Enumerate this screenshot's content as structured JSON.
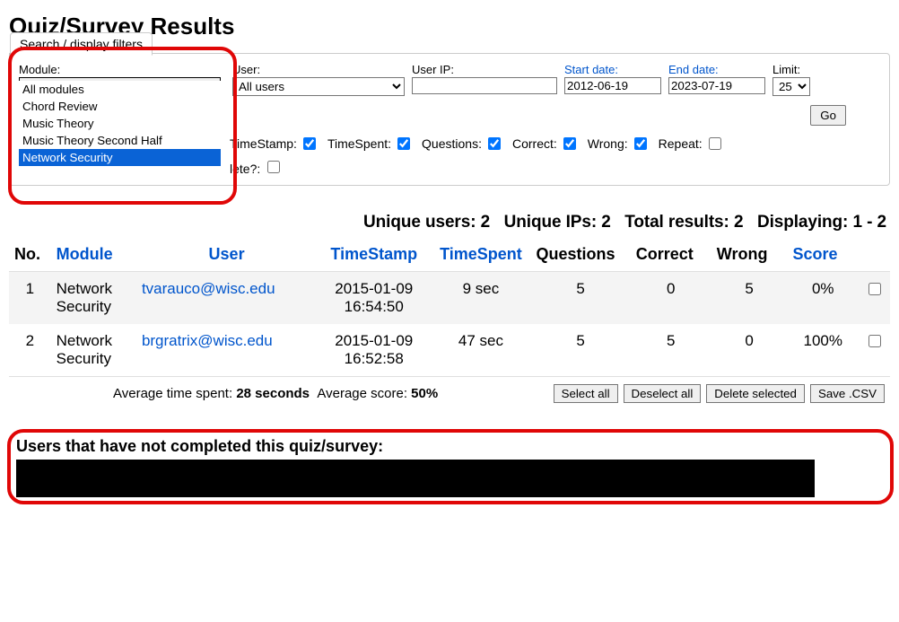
{
  "page_title": "Quiz/Survey Results",
  "filters": {
    "tab_label": "Search / display filters",
    "module": {
      "label": "Module:",
      "selected": "Network Security",
      "options": [
        "All modules",
        "Chord Review",
        "Music Theory",
        "Music Theory Second Half",
        "Network Security"
      ]
    },
    "user": {
      "label": "User:",
      "selected": "All users"
    },
    "user_ip": {
      "label": "User IP:",
      "value": ""
    },
    "start_date": {
      "label": "Start date:",
      "value": "2012-06-19"
    },
    "end_date": {
      "label": "End date:",
      "value": "2023-07-19"
    },
    "limit": {
      "label": "Limit:",
      "selected": "25"
    },
    "go_label": "Go",
    "checkboxes": {
      "timestamp": {
        "label": "TimeStamp:",
        "checked": true
      },
      "timespent": {
        "label": "TimeSpent:",
        "checked": true
      },
      "questions": {
        "label": "Questions:",
        "checked": true
      },
      "correct": {
        "label": "Correct:",
        "checked": true
      },
      "wrong": {
        "label": "Wrong:",
        "checked": true
      },
      "repeat": {
        "label": "Repeat:",
        "checked": false
      },
      "delete": {
        "label": "lete?:",
        "checked": false
      }
    }
  },
  "stats": {
    "unique_users_label": "Unique users:",
    "unique_users": "2",
    "unique_ips_label": "Unique IPs:",
    "unique_ips": "2",
    "total_results_label": "Total results:",
    "total_results": "2",
    "displaying_label": "Displaying:",
    "displaying": "1 - 2"
  },
  "table": {
    "headers": {
      "no": "No.",
      "module": "Module",
      "user": "User",
      "timestamp": "TimeStamp",
      "timespent": "TimeSpent",
      "questions": "Questions",
      "correct": "Correct",
      "wrong": "Wrong",
      "score": "Score"
    },
    "rows": [
      {
        "no": "1",
        "module": "Network Security",
        "user": "tvarauco@wisc.edu",
        "timestamp": "2015-01-09 16:54:50",
        "timespent": "9 sec",
        "questions": "5",
        "correct": "0",
        "wrong": "5",
        "score": "0%"
      },
      {
        "no": "2",
        "module": "Network Security",
        "user": "brgratrix@wisc.edu",
        "timestamp": "2015-01-09 16:52:58",
        "timespent": "47 sec",
        "questions": "5",
        "correct": "5",
        "wrong": "0",
        "score": "100%"
      }
    ]
  },
  "footer": {
    "avg_time_label": "Average time spent:",
    "avg_time": "28 seconds",
    "avg_score_label": "Average score:",
    "avg_score": "50%",
    "select_all": "Select all",
    "deselect_all": "Deselect all",
    "delete_selected": "Delete selected",
    "save_csv": "Save .CSV"
  },
  "incomplete": {
    "title": "Users that have not completed this quiz/survey:"
  },
  "colors": {
    "link": "#0055cc",
    "annotation": "#e00707",
    "row_alt": "#f4f4f4"
  }
}
